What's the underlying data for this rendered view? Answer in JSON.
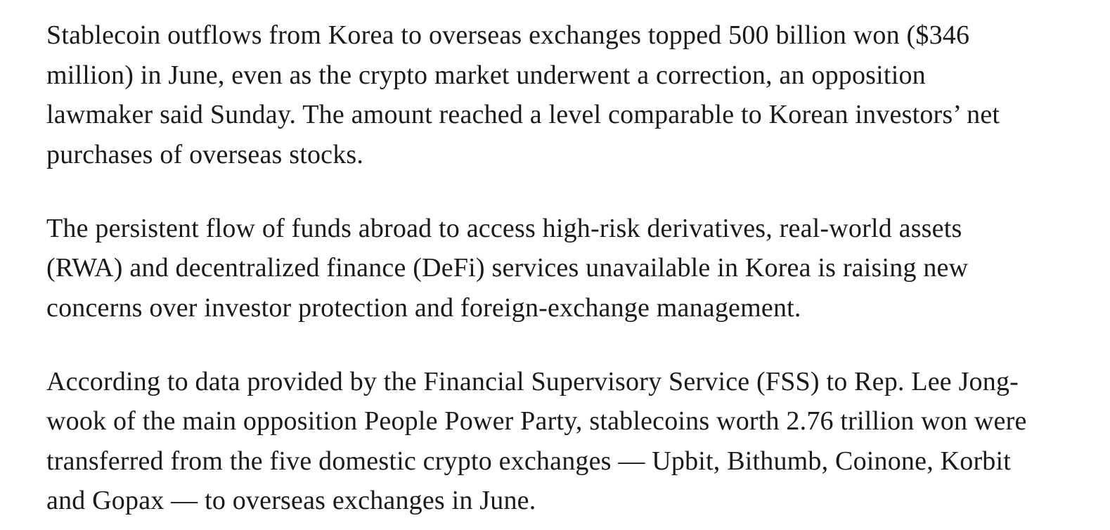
{
  "paragraphs": [
    [
      "Stablecoin outflows from Korea to overseas exchanges topped 500 billion won ($346",
      "million) in June, even as the crypto market underwent a correction, an opposition",
      "lawmaker said Sunday. The amount reached a level comparable to Korean investors’ net",
      "purchases of overseas stocks."
    ],
    [
      "The persistent flow of funds abroad to access high-risk derivatives, real-world assets",
      "(RWA) and decentralized finance (DeFi) services unavailable in Korea is raising new",
      "concerns over investor protection and foreign-exchange management."
    ],
    [
      "According to data provided by the Financial Supervisory Service (FSS) to Rep. Lee Jong-",
      "wook of the main opposition People Power Party, stablecoins worth 2.76 trillion won were",
      "transferred from the five domestic crypto exchanges — Upbit, Bithumb, Coinone, Korbit",
      "and Gopax — to overseas exchanges in June."
    ]
  ]
}
